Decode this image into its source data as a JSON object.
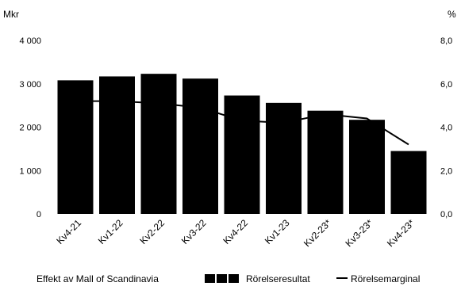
{
  "chart_data": {
    "type": "bar",
    "categories": [
      "Kv4-21",
      "Kv1-22",
      "Kv2-22",
      "Kv3-22",
      "Kv4-22",
      "Kv1-23",
      "Kv2-23*",
      "Kv3-23*",
      "Kv4-23*"
    ],
    "series": [
      {
        "name": "Rörelseresultat",
        "kind": "bar",
        "axis": "left",
        "color": "#000000",
        "values": [
          3080,
          3170,
          3230,
          3120,
          2730,
          2560,
          2380,
          2170,
          1450
        ]
      },
      {
        "name": "Rörelsemarginal",
        "kind": "line",
        "axis": "right",
        "color": "#000000",
        "values": [
          5.2,
          5.2,
          5.1,
          4.9,
          4.3,
          4.2,
          4.6,
          4.4,
          3.2
        ]
      }
    ],
    "left_axis": {
      "label": "Mkr",
      "ylim": [
        0,
        4000
      ],
      "ticks": [
        0,
        1000,
        2000,
        3000,
        4000
      ],
      "tick_labels": [
        "0",
        "1 000",
        "2 000",
        "3 000",
        "4 000"
      ]
    },
    "right_axis": {
      "label": "%",
      "ylim": [
        0,
        8
      ],
      "ticks": [
        0,
        2,
        4,
        6,
        8
      ],
      "tick_labels": [
        "0,0",
        "2,0",
        "4,0",
        "6,0",
        "8,0"
      ]
    },
    "legend": {
      "placement": "bottom",
      "items": [
        {
          "label": "Effekt av Mall of Scandinavia",
          "kind": "text-only"
        },
        {
          "label": "Rörelseresultat",
          "kind": "box"
        },
        {
          "label": "Rörelsemarginal",
          "kind": "line"
        }
      ]
    },
    "grid": false,
    "title": "",
    "xlabel": ""
  }
}
